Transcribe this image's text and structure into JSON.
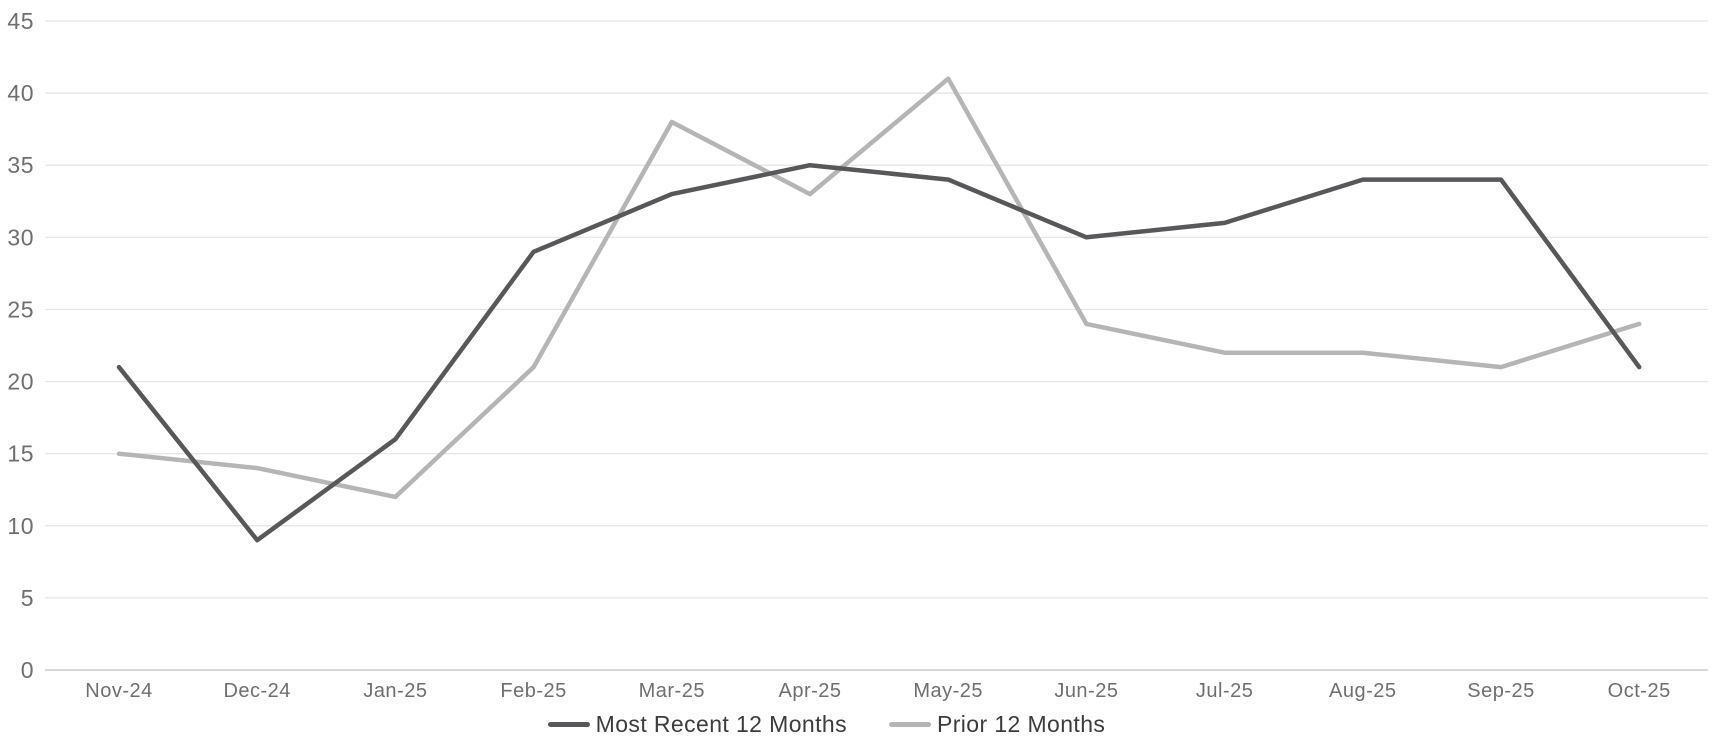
{
  "chart_data": {
    "type": "line",
    "title": "",
    "categories": [
      "Nov-24",
      "Dec-24",
      "Jan-25",
      "Feb-25",
      "Mar-25",
      "Apr-25",
      "May-25",
      "Jun-25",
      "Jul-25",
      "Aug-25",
      "Sep-25",
      "Oct-25"
    ],
    "series": [
      {
        "name": "Most Recent 12 Months",
        "color": "#58585a",
        "values": [
          21,
          9,
          16,
          29,
          33,
          35,
          34,
          30,
          31,
          34,
          34,
          21
        ]
      },
      {
        "name": "Prior 12 Months",
        "color": "#b5b5b5",
        "values": [
          15,
          14,
          12,
          21,
          38,
          33,
          41,
          24,
          22,
          22,
          21,
          24
        ]
      }
    ],
    "xlabel": "",
    "ylabel": "",
    "ylim": [
      0,
      45
    ],
    "yticks": [
      0,
      5,
      10,
      15,
      20,
      25,
      30,
      35,
      40,
      45
    ],
    "grid": "horizontal",
    "legend_position": "bottom-center",
    "colors": {
      "gridline": "#e4e4e4",
      "axis_line": "#cccccc",
      "tick_label": "#6f6f6f",
      "legend_text": "#3c3c3c",
      "background": "#ffffff"
    }
  }
}
